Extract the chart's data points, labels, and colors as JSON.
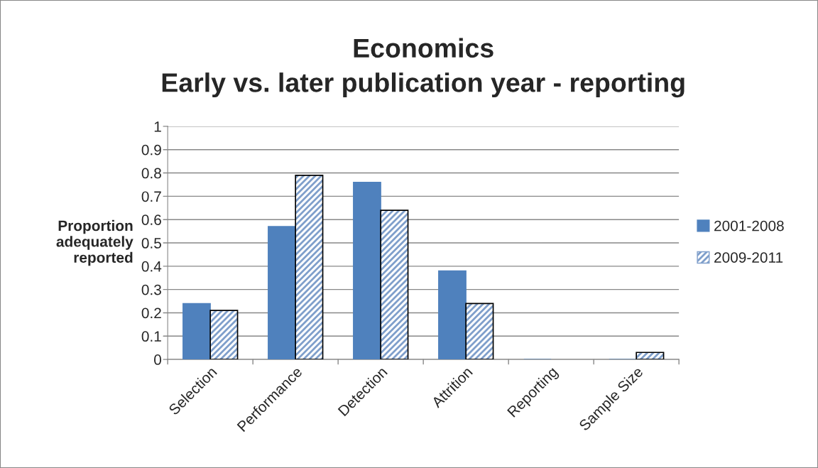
{
  "chart_data": {
    "type": "bar",
    "title": "Economics\nEarly vs. later publication year - reporting",
    "ylabel": "Proportion\nadequately\nreported",
    "categories": [
      "Selection",
      "Performance",
      "Detection",
      "Attrition",
      "Reporting",
      "Sample Size"
    ],
    "series": [
      {
        "name": "2001-2008",
        "color": "#4f81bd",
        "values": [
          0.24,
          0.57,
          0.76,
          0.38,
          0,
          0
        ]
      },
      {
        "name": "2009-2011",
        "color": "#7f9fcb",
        "values": [
          0.21,
          0.79,
          0.64,
          0.24,
          0,
          0.03
        ]
      }
    ],
    "ylim": [
      0,
      1
    ],
    "yticks": [
      0,
      0.1,
      0.2,
      0.3,
      0.4,
      0.5,
      0.6,
      0.7,
      0.8,
      0.9,
      1
    ],
    "grid": "y",
    "legend": "right"
  }
}
